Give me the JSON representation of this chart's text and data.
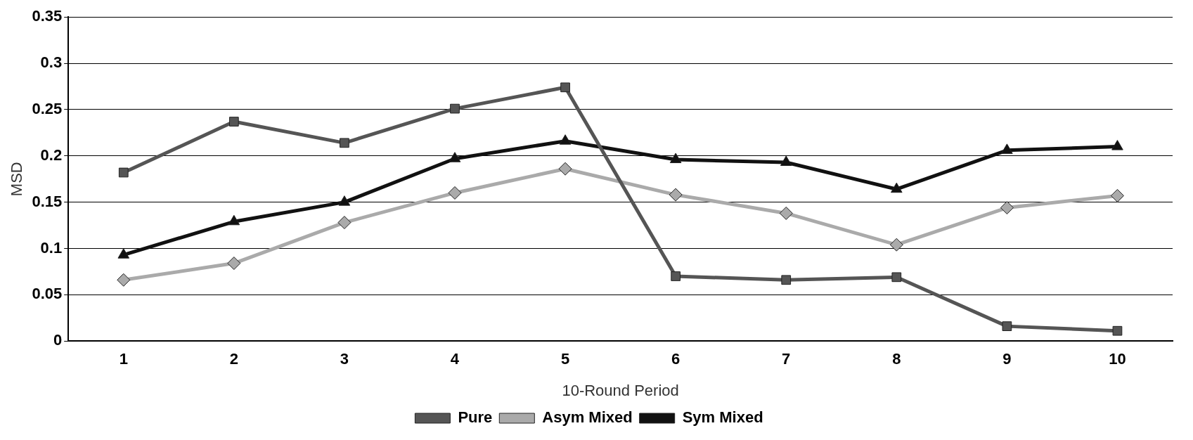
{
  "chart_data": {
    "type": "line",
    "xlabel": "10-Round Period",
    "ylabel": "MSD",
    "categories": [
      "1",
      "2",
      "3",
      "4",
      "5",
      "6",
      "7",
      "8",
      "9",
      "10"
    ],
    "ylim": [
      0,
      0.35
    ],
    "yticks": [
      0,
      0.05,
      0.1,
      0.15,
      0.2,
      0.25,
      0.3,
      0.35
    ],
    "grid": "y",
    "legend": "bottom",
    "line_style": "solid",
    "series": [
      {
        "name": "Pure",
        "color": "#555555",
        "marker": "square",
        "values": [
          0.182,
          0.237,
          0.214,
          0.251,
          0.274,
          0.07,
          0.066,
          0.069,
          0.016,
          0.011
        ]
      },
      {
        "name": "Asym Mixed",
        "color": "#aaaaaa",
        "marker": "diamond",
        "values": [
          0.066,
          0.084,
          0.128,
          0.16,
          0.186,
          0.158,
          0.138,
          0.104,
          0.144,
          0.157
        ]
      },
      {
        "name": "Sym Mixed",
        "color": "#111111",
        "marker": "triangle",
        "values": [
          0.093,
          0.129,
          0.15,
          0.197,
          0.216,
          0.196,
          0.193,
          0.164,
          0.206,
          0.21
        ]
      }
    ]
  }
}
